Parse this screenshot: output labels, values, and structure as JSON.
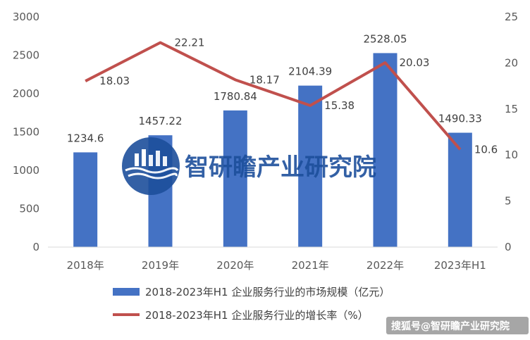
{
  "chart_data": {
    "type": "bar+line",
    "categories": [
      "2018年",
      "2019年",
      "2020年",
      "2021年",
      "2022年",
      "2023年H1"
    ],
    "series": [
      {
        "name": "2018-2023年H1 企业服务行业的市场规模（亿元）",
        "type": "bar",
        "axis": "left",
        "values": [
          1234.6,
          1457.22,
          1780.84,
          2104.39,
          2528.05,
          1490.33
        ],
        "labels": [
          "1234.6",
          "1457.22",
          "1780.84",
          "2104.39",
          "2528.05",
          "1490.33"
        ],
        "color": "#4472c4"
      },
      {
        "name": "2018-2023年H1 企业服务行业的增长率（%）",
        "type": "line",
        "axis": "right",
        "values": [
          18.03,
          22.21,
          18.17,
          15.38,
          20.03,
          10.6
        ],
        "labels": [
          "18.03",
          "22.21",
          "18.17",
          "15.38",
          "20.03",
          "10.6"
        ],
        "color": "#c0504d"
      }
    ],
    "y_left": {
      "min": 0,
      "max": 3000,
      "ticks": [
        "0",
        "500",
        "1000",
        "1500",
        "2000",
        "2500",
        "3000"
      ]
    },
    "y_right": {
      "min": 0,
      "max": 25,
      "ticks": [
        "0",
        "5",
        "10",
        "15",
        "20",
        "25"
      ]
    },
    "grid": false,
    "legend": "bottom"
  },
  "watermark": {
    "text": "智研瞻产业研究院"
  },
  "footer": {
    "text": "搜狐号@智研瞻产业研究院"
  }
}
